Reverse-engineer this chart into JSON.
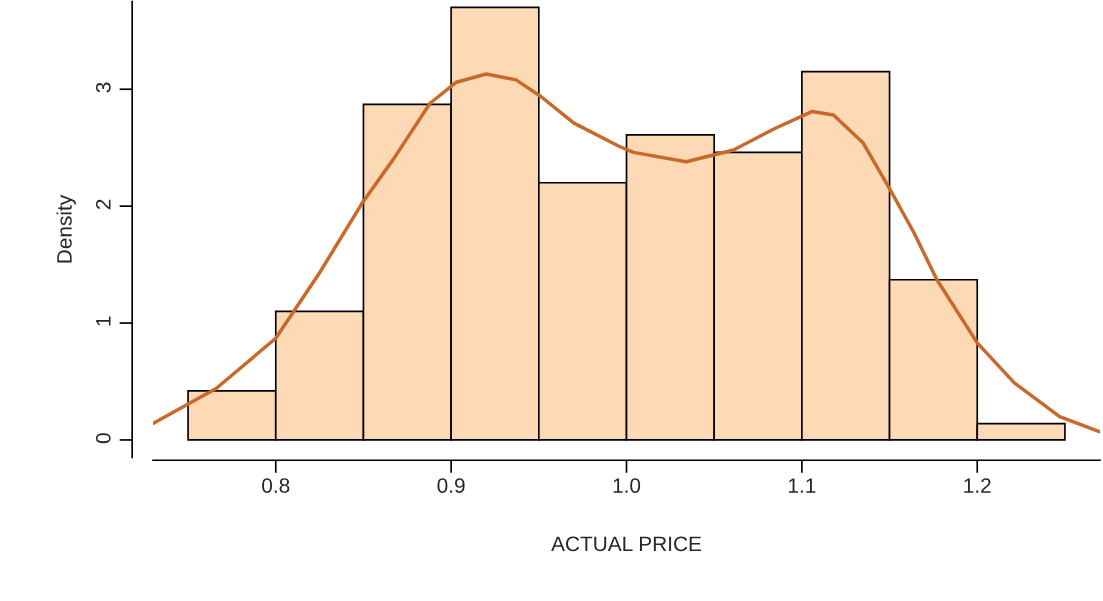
{
  "chart_data": {
    "type": "histogram",
    "xlabel": "ACTUAL PRICE",
    "ylabel": "Density",
    "xlim": [
      0.73,
      1.27
    ],
    "ylim": [
      -0.15,
      3.75
    ],
    "xticks": [
      {
        "value": 0.8,
        "label": "0.8"
      },
      {
        "value": 0.9,
        "label": "0.9"
      },
      {
        "value": 1.0,
        "label": "1.0"
      },
      {
        "value": 1.1,
        "label": "1.1"
      },
      {
        "value": 1.2,
        "label": "1.2"
      }
    ],
    "yticks": [
      0,
      1,
      2,
      3
    ],
    "series": [
      {
        "color": "#fdd9b5",
        "bins": [
          0.75,
          0.8,
          0.85,
          0.9,
          0.95,
          1.0,
          1.05,
          1.1,
          1.15,
          1.2,
          1.25
        ],
        "values": [
          0.42,
          1.1,
          2.87,
          3.7,
          2.2,
          2.61,
          2.46,
          3.15,
          1.37,
          0.14
        ]
      },
      {
        "type": "line",
        "color": "#c8692a",
        "x": [
          0.73,
          0.766,
          0.8,
          0.825,
          0.849,
          0.867,
          0.888,
          0.903,
          0.92,
          0.937,
          0.951,
          0.97,
          0.996,
          1.004,
          1.034,
          1.061,
          1.084,
          1.106,
          1.118,
          1.135,
          1.15,
          1.164,
          1.177,
          1.2,
          1.221,
          1.247,
          1.27
        ],
        "values": [
          0.14,
          0.44,
          0.87,
          1.43,
          2.02,
          2.4,
          2.88,
          3.06,
          3.13,
          3.08,
          2.94,
          2.71,
          2.51,
          2.46,
          2.38,
          2.48,
          2.66,
          2.81,
          2.78,
          2.54,
          2.15,
          1.77,
          1.37,
          0.83,
          0.49,
          0.2,
          0.07
        ]
      }
    ]
  }
}
